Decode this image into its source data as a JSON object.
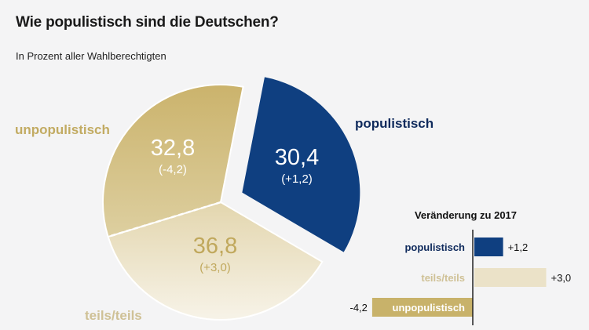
{
  "title": "Wie populistisch sind die Deutschen?",
  "subtitle": "In Prozent aller Wahlberechtigten",
  "colors": {
    "populistisch": "#0f3f80",
    "populistisch_label": "#0f2a5c",
    "unpopulistisch": "#c8b26a",
    "teils": "#ebe2c8",
    "teils_label": "#cfc196",
    "unpop_label": "#c2ab62",
    "teils_value": "#c0a85c",
    "white": "#ffffff"
  },
  "chart_data": [
    {
      "type": "pie",
      "title": "Wie populistisch sind die Deutschen?",
      "subtitle": "In Prozent aller Wahlberechtigten",
      "slices": [
        {
          "key": "populistisch",
          "label": "populistisch",
          "value": 30.4,
          "value_text": "30,4",
          "change_text": "(+1,2)",
          "exploded": true
        },
        {
          "key": "teils",
          "label": "teils/teils",
          "value": 36.8,
          "value_text": "36,8",
          "change_text": "(+3,0)",
          "exploded": false
        },
        {
          "key": "unpopulistisch",
          "label": "unpopulistisch",
          "value": 32.8,
          "value_text": "32,8",
          "change_text": "(-4,2)",
          "exploded": false
        }
      ]
    },
    {
      "type": "bar",
      "orientation": "horizontal",
      "title": "Veränderung zu 2017",
      "categories": [
        "populistisch",
        "teils/teils",
        "unpopulistisch"
      ],
      "values": [
        1.2,
        3.0,
        -4.2
      ],
      "value_labels": [
        "+1,2",
        "+3,0",
        "-4,2"
      ]
    }
  ]
}
